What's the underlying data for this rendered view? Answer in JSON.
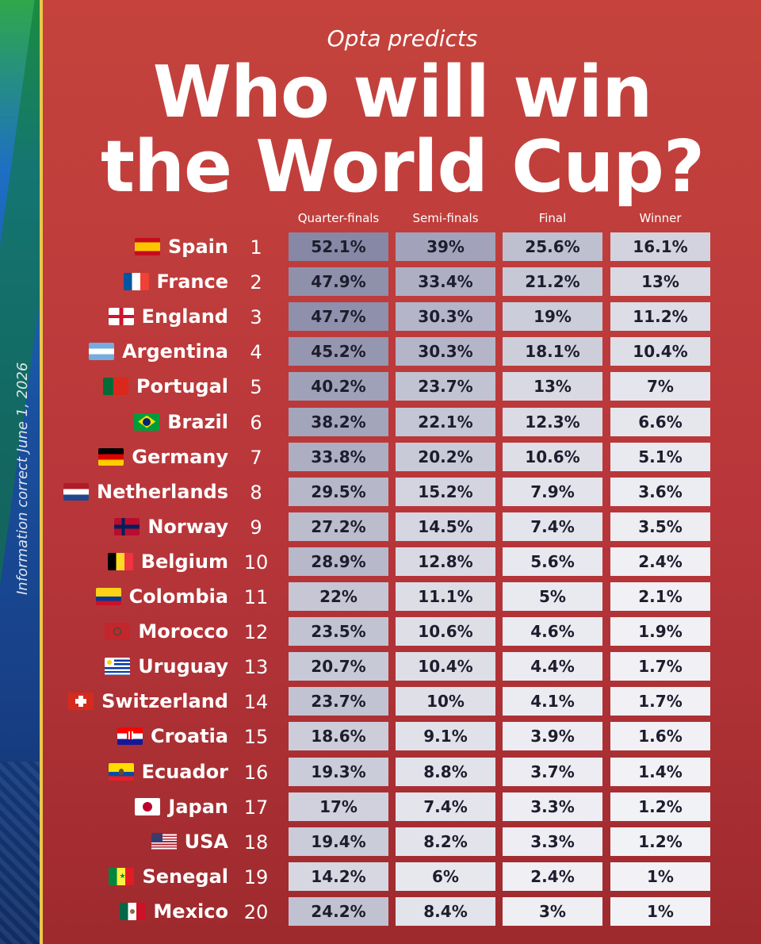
{
  "side_note": "Information correct June 1, 2026",
  "subtitle": "Opta predicts",
  "title_line1": "Who will win",
  "title_line2": "the World Cup?",
  "chart_data": {
    "type": "table",
    "columns": [
      "Quarter-finals",
      "Semi-finals",
      "Final",
      "Winner"
    ],
    "rows": [
      {
        "country": "Spain",
        "rank": "1",
        "values": [
          "52.1%",
          "39%",
          "25.6%",
          "16.1%"
        ],
        "flag": "spain"
      },
      {
        "country": "France",
        "rank": "2",
        "values": [
          "47.9%",
          "33.4%",
          "21.2%",
          "13%"
        ],
        "flag": "france"
      },
      {
        "country": "England",
        "rank": "3",
        "values": [
          "47.7%",
          "30.3%",
          "19%",
          "11.2%"
        ],
        "flag": "england"
      },
      {
        "country": "Argentina",
        "rank": "4",
        "values": [
          "45.2%",
          "30.3%",
          "18.1%",
          "10.4%"
        ],
        "flag": "argentina"
      },
      {
        "country": "Portugal",
        "rank": "5",
        "values": [
          "40.2%",
          "23.7%",
          "13%",
          "7%"
        ],
        "flag": "portugal"
      },
      {
        "country": "Brazil",
        "rank": "6",
        "values": [
          "38.2%",
          "22.1%",
          "12.3%",
          "6.6%"
        ],
        "flag": "brazil"
      },
      {
        "country": "Germany",
        "rank": "7",
        "values": [
          "33.8%",
          "20.2%",
          "10.6%",
          "5.1%"
        ],
        "flag": "germany"
      },
      {
        "country": "Netherlands",
        "rank": "8",
        "values": [
          "29.5%",
          "15.2%",
          "7.9%",
          "3.6%"
        ],
        "flag": "netherlands"
      },
      {
        "country": "Norway",
        "rank": "9",
        "values": [
          "27.2%",
          "14.5%",
          "7.4%",
          "3.5%"
        ],
        "flag": "norway"
      },
      {
        "country": "Belgium",
        "rank": "10",
        "values": [
          "28.9%",
          "12.8%",
          "5.6%",
          "2.4%"
        ],
        "flag": "belgium"
      },
      {
        "country": "Colombia",
        "rank": "11",
        "values": [
          "22%",
          "11.1%",
          "5%",
          "2.1%"
        ],
        "flag": "colombia"
      },
      {
        "country": "Morocco",
        "rank": "12",
        "values": [
          "23.5%",
          "10.6%",
          "4.6%",
          "1.9%"
        ],
        "flag": "morocco"
      },
      {
        "country": "Uruguay",
        "rank": "13",
        "values": [
          "20.7%",
          "10.4%",
          "4.4%",
          "1.7%"
        ],
        "flag": "uruguay"
      },
      {
        "country": "Switzerland",
        "rank": "14",
        "values": [
          "23.7%",
          "10%",
          "4.1%",
          "1.7%"
        ],
        "flag": "switzerland"
      },
      {
        "country": "Croatia",
        "rank": "15",
        "values": [
          "18.6%",
          "9.1%",
          "3.9%",
          "1.6%"
        ],
        "flag": "croatia"
      },
      {
        "country": "Ecuador",
        "rank": "16",
        "values": [
          "19.3%",
          "8.8%",
          "3.7%",
          "1.4%"
        ],
        "flag": "ecuador"
      },
      {
        "country": "Japan",
        "rank": "17",
        "values": [
          "17%",
          "7.4%",
          "3.3%",
          "1.2%"
        ],
        "flag": "japan"
      },
      {
        "country": "USA",
        "rank": "18",
        "values": [
          "19.4%",
          "8.2%",
          "3.3%",
          "1.2%"
        ],
        "flag": "usa"
      },
      {
        "country": "Senegal",
        "rank": "19",
        "values": [
          "14.2%",
          "6%",
          "2.4%",
          "1%"
        ],
        "flag": "senegal"
      },
      {
        "country": "Mexico",
        "rank": "20",
        "values": [
          "24.2%",
          "8.4%",
          "3%",
          "1%"
        ],
        "flag": "mexico"
      }
    ]
  }
}
